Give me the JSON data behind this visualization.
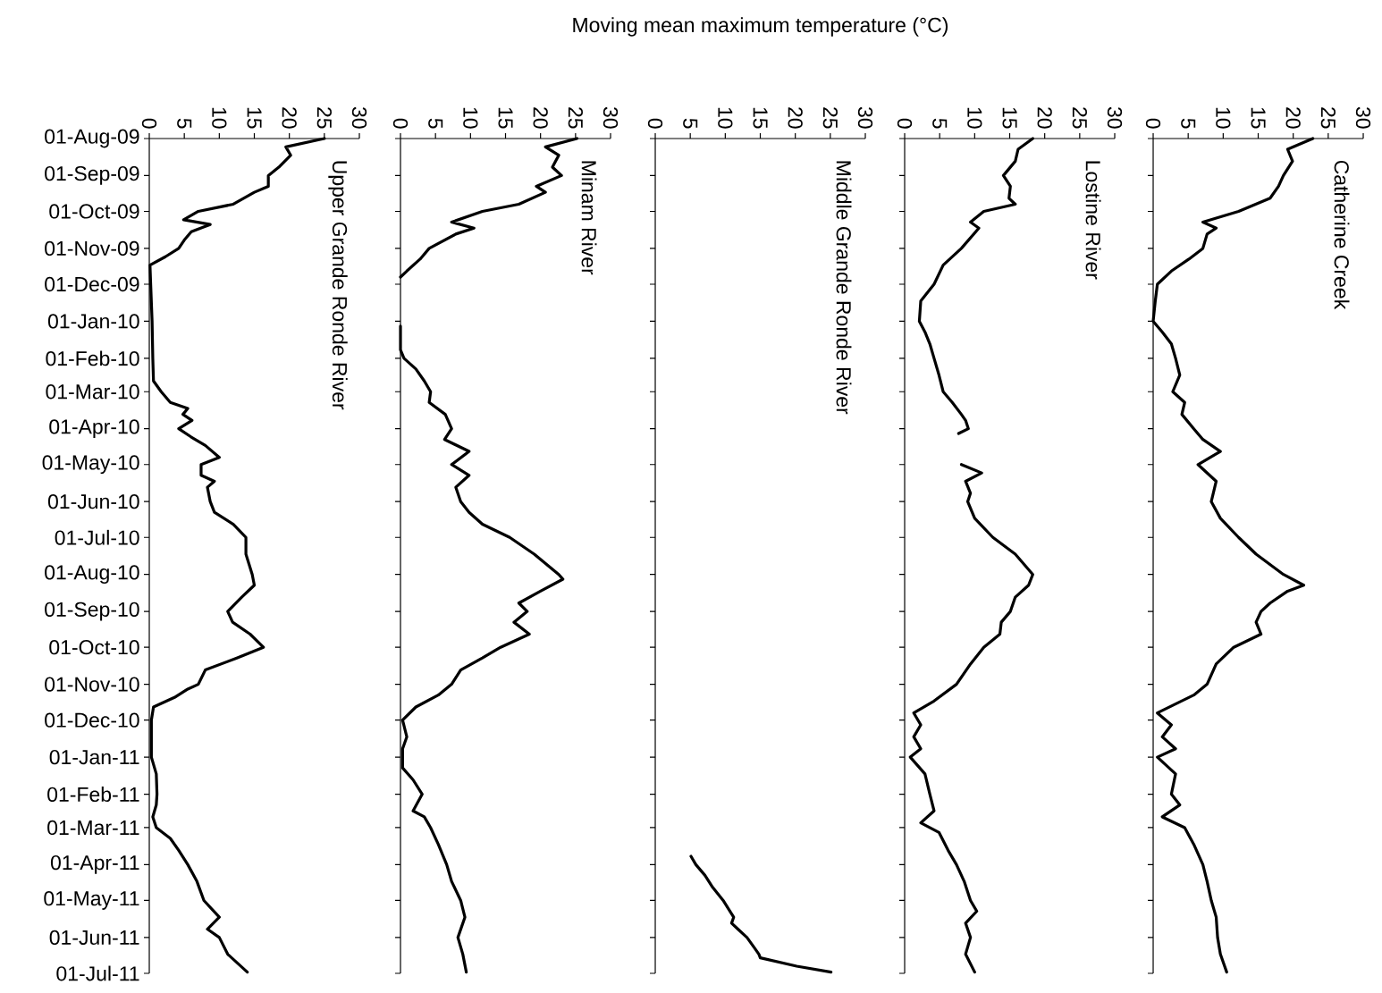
{
  "chart_data": [
    {
      "type": "line",
      "orientation": "horizontal",
      "title": "Upper Grande Ronde River",
      "color": "#000000",
      "x": [
        "2009-08-01",
        "2009-08-08",
        "2009-08-15",
        "2009-08-25",
        "2009-09-01",
        "2009-09-10",
        "2009-09-15",
        "2009-09-25",
        "2009-10-01",
        "2009-10-08",
        "2009-10-12",
        "2009-10-18",
        "2009-10-25",
        "2009-11-01",
        "2009-11-08",
        "2009-11-15",
        "2009-12-01",
        "2010-01-01",
        "2010-02-01",
        "2010-02-20",
        "2010-03-01",
        "2010-03-10",
        "2010-03-15",
        "2010-03-20",
        "2010-03-25",
        "2010-04-01",
        "2010-04-08",
        "2010-04-15",
        "2010-04-25",
        "2010-05-01",
        "2010-05-10",
        "2010-05-15",
        "2010-05-20",
        "2010-06-01",
        "2010-06-10",
        "2010-06-20",
        "2010-07-01",
        "2010-07-15",
        "2010-08-01",
        "2010-08-10",
        "2010-08-20",
        "2010-09-01",
        "2010-09-10",
        "2010-09-20",
        "2010-10-01",
        "2010-10-10",
        "2010-10-20",
        "2010-11-01",
        "2010-11-05",
        "2010-11-12",
        "2010-11-20",
        "2010-12-01",
        "2011-01-01",
        "2011-01-15",
        "2011-02-01",
        "2011-02-10",
        "2011-02-20",
        "2011-03-01",
        "2011-03-10",
        "2011-03-20",
        "2011-04-01",
        "2011-04-15",
        "2011-05-01",
        "2011-05-15",
        "2011-05-25",
        "2011-06-01",
        "2011-06-15",
        "2011-06-30"
      ],
      "values": [
        25,
        19.5,
        20.2,
        18.5,
        17,
        17,
        15,
        12,
        7,
        4.9,
        8.7,
        6,
        5,
        4.2,
        2.3,
        0.1,
        0.2,
        0.4,
        0.5,
        0.6,
        1.7,
        3,
        5.5,
        4.8,
        6.1,
        4.2,
        6,
        8,
        10,
        7.4,
        7.4,
        9.3,
        8.3,
        8.7,
        9.3,
        12,
        13.8,
        13.8,
        14.7,
        15,
        13.2,
        11.2,
        11.9,
        14.4,
        16.3,
        12.5,
        8,
        7,
        5.5,
        3.6,
        0.6,
        0.3,
        0.3,
        1,
        1.1,
        1,
        0.5,
        1,
        3,
        4.2,
        5.5,
        6.8,
        7.8,
        10,
        8.3,
        10,
        11.2,
        14
      ],
      "ylim": [
        "2011-07-01",
        "2009-08-01"
      ],
      "yticks": [
        {
          "value": "2009-08-01",
          "label": "01-Aug-09"
        },
        {
          "value": "2009-09-01",
          "label": "01-Sep-09"
        },
        {
          "value": "2009-10-01",
          "label": "01-Oct-09"
        },
        {
          "value": "2009-11-01",
          "label": "01-Nov-09"
        },
        {
          "value": "2009-12-01",
          "label": "01-Dec-09"
        },
        {
          "value": "2010-01-01",
          "label": "01-Jan-10"
        },
        {
          "value": "2010-02-01",
          "label": "01-Feb-10"
        },
        {
          "value": "2010-03-01",
          "label": "01-Mar-10"
        },
        {
          "value": "2010-04-01",
          "label": "01-Apr-10"
        },
        {
          "value": "2010-05-01",
          "label": "01-May-10"
        },
        {
          "value": "2010-06-01",
          "label": "01-Jun-10"
        },
        {
          "value": "2010-07-01",
          "label": "01-Jul-10"
        },
        {
          "value": "2010-08-01",
          "label": "01-Aug-10"
        },
        {
          "value": "2010-09-01",
          "label": "01-Sep-10"
        },
        {
          "value": "2010-10-01",
          "label": "01-Oct-10"
        },
        {
          "value": "2010-11-01",
          "label": "01-Nov-10"
        },
        {
          "value": "2010-12-01",
          "label": "01-Dec-10"
        },
        {
          "value": "2011-01-01",
          "label": "01-Jan-11"
        },
        {
          "value": "2011-02-01",
          "label": "01-Feb-11"
        },
        {
          "value": "2011-03-01",
          "label": "01-Mar-11"
        },
        {
          "value": "2011-04-01",
          "label": "01-Apr-11"
        },
        {
          "value": "2011-05-01",
          "label": "01-May-11"
        },
        {
          "value": "2011-06-01",
          "label": "01-Jun-11"
        },
        {
          "value": "2011-07-01",
          "label": "01-Jul-11"
        }
      ],
      "xlim": [
        0,
        30
      ],
      "xticks": [
        0,
        5,
        10,
        15,
        20,
        25,
        30
      ]
    },
    {
      "type": "line",
      "orientation": "horizontal",
      "title": "Minam River",
      "color": "#000000",
      "x": [
        "2009-08-01",
        "2009-08-08",
        "2009-08-15",
        "2009-08-25",
        "2009-09-01",
        "2009-09-10",
        "2009-09-15",
        "2009-09-25",
        "2009-10-01",
        "2009-10-10",
        "2009-10-15",
        "2009-10-20",
        "2009-11-01",
        "2009-11-10",
        "2009-11-20",
        "2009-11-25",
        "2009-12-20",
        "2010-01-05",
        "2010-01-25",
        "2010-02-01",
        "2010-02-10",
        "2010-02-20",
        "2010-03-01",
        "2010-03-10",
        "2010-03-20",
        "2010-04-01",
        "2010-04-10",
        "2010-04-20",
        "2010-05-01",
        "2010-05-10",
        "2010-05-20",
        "2010-06-01",
        "2010-06-10",
        "2010-06-20",
        "2010-07-01",
        "2010-07-15",
        "2010-08-01",
        "2010-08-05",
        "2010-08-15",
        "2010-08-25",
        "2010-09-01",
        "2010-09-10",
        "2010-09-20",
        "2010-10-01",
        "2010-10-10",
        "2010-10-20",
        "2010-11-01",
        "2010-11-10",
        "2010-11-20",
        "2010-12-01",
        "2010-12-15",
        "2010-12-25",
        "2011-01-10",
        "2011-01-20",
        "2011-02-01",
        "2011-02-15",
        "2011-02-20",
        "2011-03-01",
        "2011-03-15",
        "2011-04-01",
        "2011-04-15",
        "2011-05-01",
        "2011-05-15",
        "2011-06-01",
        "2011-06-15",
        "2011-06-30"
      ],
      "values": [
        25.2,
        20.7,
        22.6,
        21.7,
        23,
        19.4,
        20.7,
        16.9,
        11.7,
        7.3,
        10.5,
        7.9,
        4.1,
        2.8,
        0.9,
        0,
        null,
        0,
        0,
        0.5,
        2.2,
        3.4,
        4.3,
        4.1,
        6.4,
        7.3,
        6.3,
        9.8,
        7.3,
        9.8,
        7.9,
        8.6,
        9.8,
        11.7,
        15.6,
        19.1,
        22.6,
        23.2,
        20,
        16.9,
        18.1,
        16.2,
        18.4,
        14.3,
        11.7,
        8.6,
        7.3,
        5.4,
        2.2,
        0.3,
        0.9,
        0.3,
        0.3,
        1.8,
        3.1,
        1.8,
        3.4,
        4.3,
        5.4,
        6.6,
        7.3,
        8.6,
        9.2,
        8.2,
        8.9,
        9.4
      ],
      "ylim": [
        "2011-07-01",
        "2009-08-01"
      ],
      "yticks": [
        {
          "value": "2009-08-01",
          "label": null
        },
        {
          "value": "2009-09-01",
          "label": null
        },
        {
          "value": "2009-10-01",
          "label": null
        },
        {
          "value": "2009-11-01",
          "label": null
        },
        {
          "value": "2009-12-01",
          "label": null
        },
        {
          "value": "2010-01-01",
          "label": null
        },
        {
          "value": "2010-02-01",
          "label": null
        },
        {
          "value": "2010-03-01",
          "label": null
        },
        {
          "value": "2010-04-01",
          "label": null
        },
        {
          "value": "2010-05-01",
          "label": null
        },
        {
          "value": "2010-06-01",
          "label": null
        },
        {
          "value": "2010-07-01",
          "label": null
        },
        {
          "value": "2010-08-01",
          "label": null
        },
        {
          "value": "2010-09-01",
          "label": null
        },
        {
          "value": "2010-10-01",
          "label": null
        },
        {
          "value": "2010-11-01",
          "label": null
        },
        {
          "value": "2010-12-01",
          "label": null
        },
        {
          "value": "2011-01-01",
          "label": null
        },
        {
          "value": "2011-02-01",
          "label": null
        },
        {
          "value": "2011-03-01",
          "label": null
        },
        {
          "value": "2011-04-01",
          "label": null
        },
        {
          "value": "2011-05-01",
          "label": null
        },
        {
          "value": "2011-06-01",
          "label": null
        },
        {
          "value": "2011-07-01",
          "label": null
        }
      ],
      "xlim": [
        0,
        30
      ],
      "xticks": [
        0,
        5,
        10,
        15,
        20,
        25,
        30
      ],
      "tick_labels": "x"
    },
    {
      "type": "line",
      "orientation": "horizontal",
      "title": "Middle Grande Ronde River",
      "xlabel": "Moving mean maximum temperature (°C)",
      "color": "#000000",
      "x": [
        "2011-03-25",
        "2011-04-01",
        "2011-04-10",
        "2011-04-20",
        "2011-05-01",
        "2011-05-15",
        "2011-05-20",
        "2011-05-25",
        "2011-06-01",
        "2011-06-10",
        "2011-06-15",
        "2011-06-18",
        "2011-06-25",
        "2011-06-30"
      ],
      "values": [
        5.1,
        5.8,
        7.1,
        8.2,
        9.7,
        11.2,
        10.9,
        11.8,
        13.1,
        14.2,
        14.8,
        15,
        20.2,
        25.1
      ],
      "ylim": [
        "2011-07-01",
        "2009-08-01"
      ],
      "yticks": [
        {
          "value": "2009-08-01",
          "label": null
        },
        {
          "value": "2009-09-01",
          "label": null
        },
        {
          "value": "2009-10-01",
          "label": null
        },
        {
          "value": "2009-11-01",
          "label": null
        },
        {
          "value": "2009-12-01",
          "label": null
        },
        {
          "value": "2010-01-01",
          "label": null
        },
        {
          "value": "2010-02-01",
          "label": null
        },
        {
          "value": "2010-03-01",
          "label": null
        },
        {
          "value": "2010-04-01",
          "label": null
        },
        {
          "value": "2010-05-01",
          "label": null
        },
        {
          "value": "2010-06-01",
          "label": null
        },
        {
          "value": "2010-07-01",
          "label": null
        },
        {
          "value": "2010-08-01",
          "label": null
        },
        {
          "value": "2010-09-01",
          "label": null
        },
        {
          "value": "2010-10-01",
          "label": null
        },
        {
          "value": "2010-11-01",
          "label": null
        },
        {
          "value": "2010-12-01",
          "label": null
        },
        {
          "value": "2011-01-01",
          "label": null
        },
        {
          "value": "2011-02-01",
          "label": null
        },
        {
          "value": "2011-03-01",
          "label": null
        },
        {
          "value": "2011-04-01",
          "label": null
        },
        {
          "value": "2011-05-01",
          "label": null
        },
        {
          "value": "2011-06-01",
          "label": null
        },
        {
          "value": "2011-07-01",
          "label": null
        }
      ],
      "xlim": [
        0,
        30
      ],
      "xticks": [
        0,
        5,
        10,
        15,
        20,
        25,
        30
      ],
      "tick_labels": "x"
    },
    {
      "type": "line",
      "orientation": "horizontal",
      "title": "Lostine River",
      "color": "#000000",
      "x": [
        "2009-08-01",
        "2009-08-10",
        "2009-08-20",
        "2009-09-01",
        "2009-09-10",
        "2009-09-20",
        "2009-09-25",
        "2009-10-01",
        "2009-10-10",
        "2009-10-15",
        "2009-11-01",
        "2009-11-15",
        "2009-12-01",
        "2009-12-15",
        "2010-01-01",
        "2010-01-10",
        "2010-01-20",
        "2010-02-01",
        "2010-02-15",
        "2010-03-01",
        "2010-03-10",
        "2010-03-20",
        "2010-03-25",
        "2010-04-01",
        "2010-04-05",
        "2010-04-15",
        "2010-05-01",
        "2010-05-08",
        "2010-05-15",
        "2010-05-25",
        "2010-06-01",
        "2010-06-15",
        "2010-07-01",
        "2010-07-15",
        "2010-08-01",
        "2010-08-10",
        "2010-08-20",
        "2010-09-01",
        "2010-09-10",
        "2010-09-20",
        "2010-10-01",
        "2010-10-15",
        "2010-11-01",
        "2010-11-15",
        "2010-11-25",
        "2010-12-05",
        "2010-12-15",
        "2010-12-25",
        "2011-01-01",
        "2011-01-15",
        "2011-02-01",
        "2011-02-15",
        "2011-02-25",
        "2011-03-05",
        "2011-03-20",
        "2011-04-01",
        "2011-04-15",
        "2011-05-01",
        "2011-05-10",
        "2011-05-20",
        "2011-06-01",
        "2011-06-15",
        "2011-06-30"
      ],
      "values": [
        18.3,
        16.2,
        15.8,
        14.1,
        15.1,
        14.9,
        15.8,
        11.3,
        9.4,
        10.6,
        8.1,
        5.5,
        4.2,
        2.3,
        2.1,
        2.9,
        3.6,
        4.2,
        4.9,
        5.5,
        6.8,
        8.1,
        8.7,
        9.1,
        7.7,
        null,
        8.1,
        11,
        8.7,
        9.4,
        9,
        10,
        12.6,
        15.8,
        18.3,
        17.7,
        15.8,
        15.1,
        13.8,
        13.6,
        11.3,
        9.4,
        7.4,
        4.2,
        1.3,
        2.3,
        1.3,
        2.3,
        0.8,
        2.9,
        3.6,
        4.2,
        2.3,
        4.9,
        6.2,
        7.4,
        8.5,
        9.4,
        10.3,
        8.7,
        9.4,
        8.7,
        10
      ],
      "ylim": [
        "2011-07-01",
        "2009-08-01"
      ],
      "yticks": [
        {
          "value": "2009-08-01",
          "label": null
        },
        {
          "value": "2009-09-01",
          "label": null
        },
        {
          "value": "2009-10-01",
          "label": null
        },
        {
          "value": "2009-11-01",
          "label": null
        },
        {
          "value": "2009-12-01",
          "label": null
        },
        {
          "value": "2010-01-01",
          "label": null
        },
        {
          "value": "2010-02-01",
          "label": null
        },
        {
          "value": "2010-03-01",
          "label": null
        },
        {
          "value": "2010-04-01",
          "label": null
        },
        {
          "value": "2010-05-01",
          "label": null
        },
        {
          "value": "2010-06-01",
          "label": null
        },
        {
          "value": "2010-07-01",
          "label": null
        },
        {
          "value": "2010-08-01",
          "label": null
        },
        {
          "value": "2010-09-01",
          "label": null
        },
        {
          "value": "2010-10-01",
          "label": null
        },
        {
          "value": "2010-11-01",
          "label": null
        },
        {
          "value": "2010-12-01",
          "label": null
        },
        {
          "value": "2011-01-01",
          "label": null
        },
        {
          "value": "2011-02-01",
          "label": null
        },
        {
          "value": "2011-03-01",
          "label": null
        },
        {
          "value": "2011-04-01",
          "label": null
        },
        {
          "value": "2011-05-01",
          "label": null
        },
        {
          "value": "2011-06-01",
          "label": null
        },
        {
          "value": "2011-07-01",
          "label": null
        }
      ],
      "xlim": [
        0,
        30
      ],
      "xticks": [
        0,
        5,
        10,
        15,
        20,
        25,
        30
      ],
      "tick_labels": "x"
    },
    {
      "type": "line",
      "orientation": "horizontal",
      "title": "Catherine Creek",
      "color": "#000000",
      "x": [
        "2009-08-01",
        "2009-08-10",
        "2009-08-20",
        "2009-09-01",
        "2009-09-10",
        "2009-09-20",
        "2009-10-01",
        "2009-10-10",
        "2009-10-15",
        "2009-10-20",
        "2009-11-01",
        "2009-11-10",
        "2009-11-20",
        "2009-12-01",
        "2009-12-15",
        "2010-01-01",
        "2010-01-10",
        "2010-01-20",
        "2010-02-01",
        "2010-02-15",
        "2010-03-01",
        "2010-03-10",
        "2010-03-20",
        "2010-04-01",
        "2010-04-10",
        "2010-04-20",
        "2010-05-01",
        "2010-05-15",
        "2010-06-01",
        "2010-06-15",
        "2010-07-01",
        "2010-07-15",
        "2010-08-01",
        "2010-08-10",
        "2010-08-15",
        "2010-08-25",
        "2010-09-01",
        "2010-09-10",
        "2010-09-20",
        "2010-10-01",
        "2010-10-15",
        "2010-11-01",
        "2010-11-10",
        "2010-11-25",
        "2010-12-05",
        "2010-12-15",
        "2010-12-25",
        "2011-01-01",
        "2011-01-15",
        "2011-02-01",
        "2011-02-10",
        "2011-02-20",
        "2011-03-01",
        "2011-03-15",
        "2011-04-01",
        "2011-04-15",
        "2011-05-01",
        "2011-05-15",
        "2011-06-01",
        "2011-06-15",
        "2011-06-30"
      ],
      "values": [
        22.8,
        19.2,
        19.9,
        18.6,
        17.9,
        16.7,
        12.2,
        7.1,
        9,
        7.7,
        7.1,
        5.1,
        2.6,
        0.6,
        0.3,
        0,
        1.3,
        2.6,
        3.2,
        3.8,
        2.8,
        4.5,
        4.1,
        5.8,
        7.1,
        9.6,
        6.4,
        9,
        8.3,
        9.6,
        12.2,
        14.7,
        18.6,
        21.5,
        19.2,
        16.7,
        15.4,
        14.7,
        15.4,
        11.5,
        9,
        7.7,
        5.8,
        0.6,
        2.6,
        1.3,
        3.2,
        0.6,
        3.2,
        2.6,
        3.8,
        1.3,
        4.5,
        5.8,
        7.1,
        7.7,
        8.3,
        9,
        9.2,
        9.6,
        10.5
      ],
      "ylim": [
        "2011-07-01",
        "2009-08-01"
      ],
      "yticks": [
        {
          "value": "2009-08-01",
          "label": null
        },
        {
          "value": "2009-09-01",
          "label": null
        },
        {
          "value": "2009-10-01",
          "label": null
        },
        {
          "value": "2009-11-01",
          "label": null
        },
        {
          "value": "2009-12-01",
          "label": null
        },
        {
          "value": "2010-01-01",
          "label": null
        },
        {
          "value": "2010-02-01",
          "label": null
        },
        {
          "value": "2010-03-01",
          "label": null
        },
        {
          "value": "2010-04-01",
          "label": null
        },
        {
          "value": "2010-05-01",
          "label": null
        },
        {
          "value": "2010-06-01",
          "label": null
        },
        {
          "value": "2010-07-01",
          "label": null
        },
        {
          "value": "2010-08-01",
          "label": null
        },
        {
          "value": "2010-09-01",
          "label": null
        },
        {
          "value": "2010-10-01",
          "label": null
        },
        {
          "value": "2010-11-01",
          "label": null
        },
        {
          "value": "2010-12-01",
          "label": null
        },
        {
          "value": "2011-01-01",
          "label": null
        },
        {
          "value": "2011-02-01",
          "label": null
        },
        {
          "value": "2011-03-01",
          "label": null
        },
        {
          "value": "2011-04-01",
          "label": null
        },
        {
          "value": "2011-05-01",
          "label": null
        },
        {
          "value": "2011-06-01",
          "label": null
        },
        {
          "value": "2011-07-01",
          "label": null
        }
      ],
      "xlim": [
        0,
        30
      ],
      "xticks": [
        0,
        5,
        10,
        15,
        20,
        25,
        30
      ],
      "tick_labels": "x"
    }
  ]
}
